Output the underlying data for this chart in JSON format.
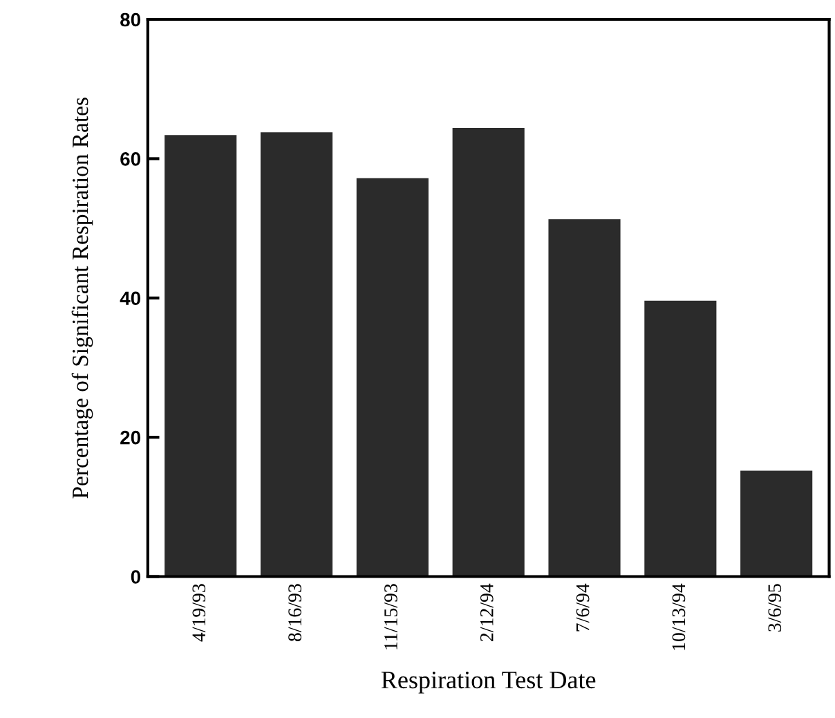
{
  "chart_data": {
    "type": "bar",
    "xlabel": "Respiration Test Date",
    "ylabel": "Percentage of Significant Respiration Rates",
    "categories": [
      "4/19/93",
      "8/16/93",
      "11/15/93",
      "2/12/94",
      "7/6/94",
      "10/13/94",
      "3/6/95"
    ],
    "values": [
      63.4,
      63.8,
      57.2,
      64.4,
      51.3,
      39.6,
      15.2
    ],
    "color": "#2b2b2b",
    "ylim": [
      0,
      80
    ],
    "yticks": [
      0,
      20,
      40,
      60,
      80
    ],
    "grid": false,
    "legend": false
  }
}
